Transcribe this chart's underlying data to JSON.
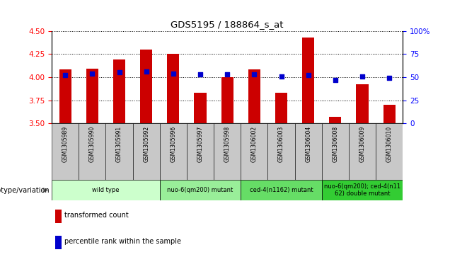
{
  "title": "GDS5195 / 188864_s_at",
  "samples": [
    "GSM1305989",
    "GSM1305990",
    "GSM1305991",
    "GSM1305992",
    "GSM1305996",
    "GSM1305997",
    "GSM1305998",
    "GSM1306002",
    "GSM1306003",
    "GSM1306004",
    "GSM1306008",
    "GSM1306009",
    "GSM1306010"
  ],
  "bar_values": [
    4.08,
    4.09,
    4.19,
    4.3,
    4.25,
    3.83,
    4.0,
    4.08,
    3.83,
    4.43,
    3.57,
    3.92,
    3.7
  ],
  "dot_values": [
    52,
    54,
    55,
    56,
    54,
    53,
    53,
    53,
    51,
    52,
    47,
    51,
    49
  ],
  "ylim_left": [
    3.5,
    4.5
  ],
  "ylim_right": [
    0,
    100
  ],
  "yticks_left": [
    3.5,
    3.75,
    4.0,
    4.25,
    4.5
  ],
  "yticks_right": [
    0,
    25,
    50,
    75,
    100
  ],
  "bar_color": "#cc0000",
  "dot_color": "#0000cc",
  "bar_bottom": 3.5,
  "groups": [
    {
      "label": "wild type",
      "indices": [
        0,
        1,
        2,
        3
      ],
      "color": "#ccffcc"
    },
    {
      "label": "nuo-6(qm200) mutant",
      "indices": [
        4,
        5,
        6
      ],
      "color": "#99ee99"
    },
    {
      "label": "ced-4(n1162) mutant",
      "indices": [
        7,
        8,
        9
      ],
      "color": "#66dd66"
    },
    {
      "label": "nuo-6(qm200); ced-4(n11\n62) double mutant",
      "indices": [
        10,
        11,
        12
      ],
      "color": "#33cc33"
    }
  ],
  "genotype_label": "genotype/variation",
  "legend_bar_label": "transformed count",
  "legend_dot_label": "percentile rank within the sample",
  "sample_box_color": "#c8c8c8",
  "grid_linestyle": "dotted",
  "right_tick_labels": [
    "0",
    "25",
    "50",
    "75",
    "100%"
  ]
}
